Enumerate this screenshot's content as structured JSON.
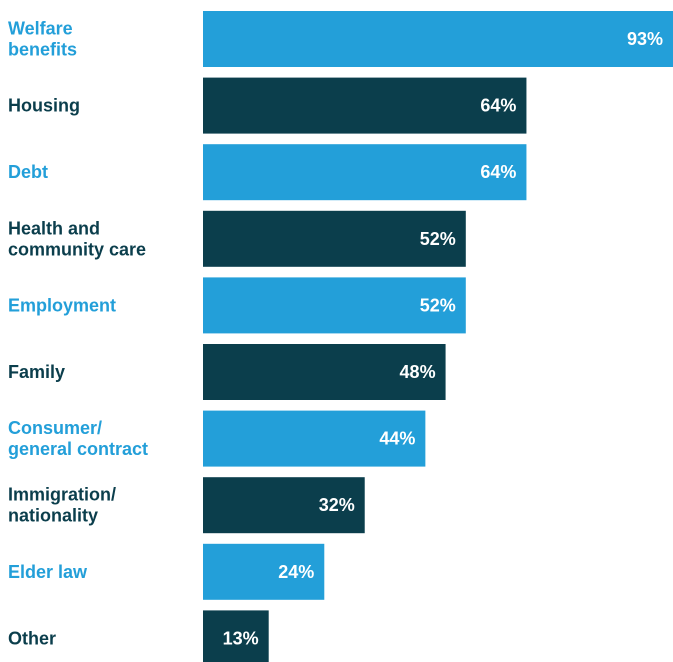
{
  "colors": {
    "light": "#239fd9",
    "dark": "#0b3e4c"
  },
  "chart_data": {
    "type": "bar",
    "orientation": "horizontal",
    "title": "",
    "xlabel": "",
    "ylabel": "",
    "xlim": [
      0,
      93
    ],
    "grid": false,
    "legend": "none",
    "categories": [
      [
        "Welfare",
        "benefits"
      ],
      [
        "Housing"
      ],
      [
        "Debt"
      ],
      [
        "Health and",
        "community care"
      ],
      [
        "Employment"
      ],
      [
        "Family"
      ],
      [
        "Consumer/",
        "general contract"
      ],
      [
        "Immigration/",
        "nationality"
      ],
      [
        "Elder law"
      ],
      [
        "Other"
      ]
    ],
    "values": [
      93,
      64,
      64,
      52,
      52,
      48,
      44,
      32,
      24,
      13
    ],
    "value_labels": [
      "93%",
      "64%",
      "64%",
      "52%",
      "52%",
      "48%",
      "44%",
      "32%",
      "24%",
      "13%"
    ],
    "color_pattern": [
      "light",
      "dark"
    ]
  }
}
